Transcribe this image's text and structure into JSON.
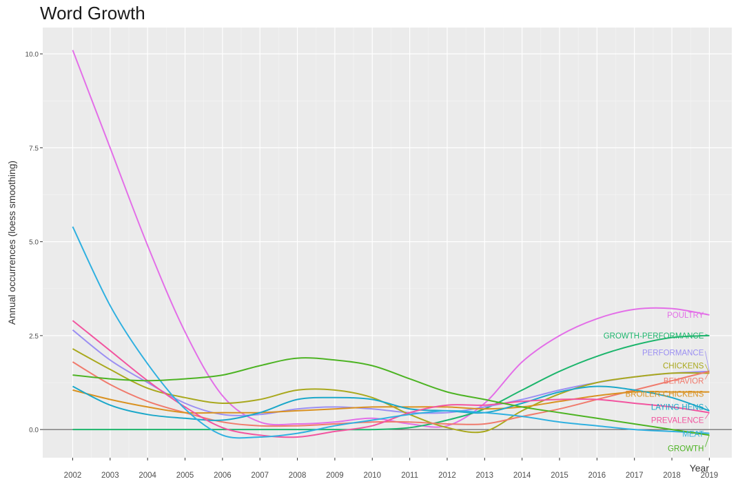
{
  "chart_data": {
    "type": "line",
    "title": "Word Growth",
    "xlabel": "Year",
    "ylabel": "Annual occurrences (loess smoothing)",
    "x": [
      2002,
      2003,
      2004,
      2005,
      2006,
      2007,
      2008,
      2009,
      2010,
      2011,
      2012,
      2013,
      2014,
      2015,
      2016,
      2017,
      2018,
      2019
    ],
    "xlim": [
      2001.2,
      2019.6
    ],
    "ylim": [
      -0.75,
      10.7
    ],
    "yticks": [
      0.0,
      2.5,
      5.0,
      7.5,
      10.0
    ],
    "ytick_labels": [
      "0.0",
      "2.5",
      "5.0",
      "7.5",
      "10.0"
    ],
    "grid": true,
    "legend": "none",
    "series": [
      {
        "name": "POULTRY",
        "color": "#e36ee8",
        "values": [
          10.1,
          7.5,
          4.9,
          2.6,
          0.9,
          0.2,
          0.15,
          0.2,
          0.3,
          0.15,
          0.1,
          0.7,
          1.8,
          2.5,
          2.95,
          3.2,
          3.22,
          3.05
        ]
      },
      {
        "name": "GROWTH-PERFORMANCE",
        "color": "#1cb56c",
        "values": [
          0.0,
          0.0,
          0.0,
          0.0,
          0.0,
          0.0,
          0.0,
          0.0,
          0.0,
          0.05,
          0.25,
          0.55,
          1.05,
          1.55,
          1.95,
          2.25,
          2.45,
          2.5
        ]
      },
      {
        "name": "PERFORMANCE",
        "color": "#9b8ff2",
        "values": [
          2.65,
          1.85,
          1.25,
          0.7,
          0.4,
          0.4,
          0.55,
          0.6,
          0.55,
          0.45,
          0.45,
          0.6,
          0.8,
          1.05,
          1.25,
          1.4,
          1.5,
          1.55
        ]
      },
      {
        "name": "CHICKENS",
        "color": "#a9a81c",
        "values": [
          2.15,
          1.6,
          1.1,
          0.85,
          0.7,
          0.8,
          1.05,
          1.05,
          0.85,
          0.4,
          0.05,
          -0.05,
          0.5,
          0.95,
          1.25,
          1.4,
          1.5,
          1.5
        ]
      },
      {
        "name": "BEHAVIOR",
        "color": "#f07a6c",
        "values": [
          1.8,
          1.2,
          0.75,
          0.45,
          0.2,
          0.1,
          0.1,
          0.15,
          0.2,
          0.2,
          0.15,
          0.15,
          0.35,
          0.55,
          0.8,
          1.05,
          1.3,
          1.55
        ]
      },
      {
        "name": "BROILER-CHICKENS",
        "color": "#d99120",
        "values": [
          1.05,
          0.8,
          0.6,
          0.45,
          0.45,
          0.45,
          0.5,
          0.55,
          0.6,
          0.6,
          0.6,
          0.55,
          0.6,
          0.75,
          0.9,
          1.0,
          1.0,
          1.0
        ]
      },
      {
        "name": "LAYING HENS",
        "color": "#1aa7c9",
        "values": [
          1.15,
          0.65,
          0.4,
          0.3,
          0.25,
          0.45,
          0.8,
          0.85,
          0.8,
          0.55,
          0.5,
          0.45,
          0.7,
          1.0,
          1.15,
          1.05,
          0.85,
          0.5
        ]
      },
      {
        "name": "PREVALENCE",
        "color": "#f2549f",
        "values": [
          2.9,
          2.1,
          1.3,
          0.6,
          0.05,
          -0.15,
          -0.2,
          -0.05,
          0.1,
          0.45,
          0.65,
          0.65,
          0.75,
          0.8,
          0.8,
          0.7,
          0.6,
          0.45
        ]
      },
      {
        "name": "MEAT",
        "color": "#2fb0e0",
        "values": [
          5.4,
          3.3,
          1.75,
          0.55,
          -0.15,
          -0.2,
          -0.1,
          0.1,
          0.25,
          0.4,
          0.5,
          0.45,
          0.35,
          0.2,
          0.1,
          0.0,
          -0.05,
          -0.1
        ]
      },
      {
        "name": "GROWTH",
        "color": "#4cb322",
        "values": [
          1.45,
          1.35,
          1.3,
          1.35,
          1.45,
          1.7,
          1.9,
          1.85,
          1.7,
          1.35,
          1.0,
          0.8,
          0.6,
          0.45,
          0.3,
          0.15,
          0.0,
          -0.15
        ]
      }
    ],
    "end_labels": [
      {
        "text": "POULTRY",
        "color": "#e36ee8",
        "y": 3.05
      },
      {
        "text": "GROWTH-PERFORMANCE",
        "color": "#1cb56c",
        "y": 2.5
      },
      {
        "text": "PERFORMANCE",
        "color": "#9b8ff2",
        "y": 2.05
      },
      {
        "text": "CHICKENS",
        "color": "#a9a81c",
        "y": 1.7
      },
      {
        "text": "BEHAVIOR",
        "color": "#f07a6c",
        "y": 1.3
      },
      {
        "text": "BROILER-CHICKENS",
        "color": "#d99120",
        "y": 0.95
      },
      {
        "text": "LAYING HENS",
        "color": "#1aa7c9",
        "y": 0.6
      },
      {
        "text": "PREVALENCE",
        "color": "#f2549f",
        "y": 0.25
      },
      {
        "text": "MEAT",
        "color": "#2fb0e0",
        "y": -0.12
      },
      {
        "text": "GROWTH",
        "color": "#4cb322",
        "y": -0.5
      }
    ]
  }
}
